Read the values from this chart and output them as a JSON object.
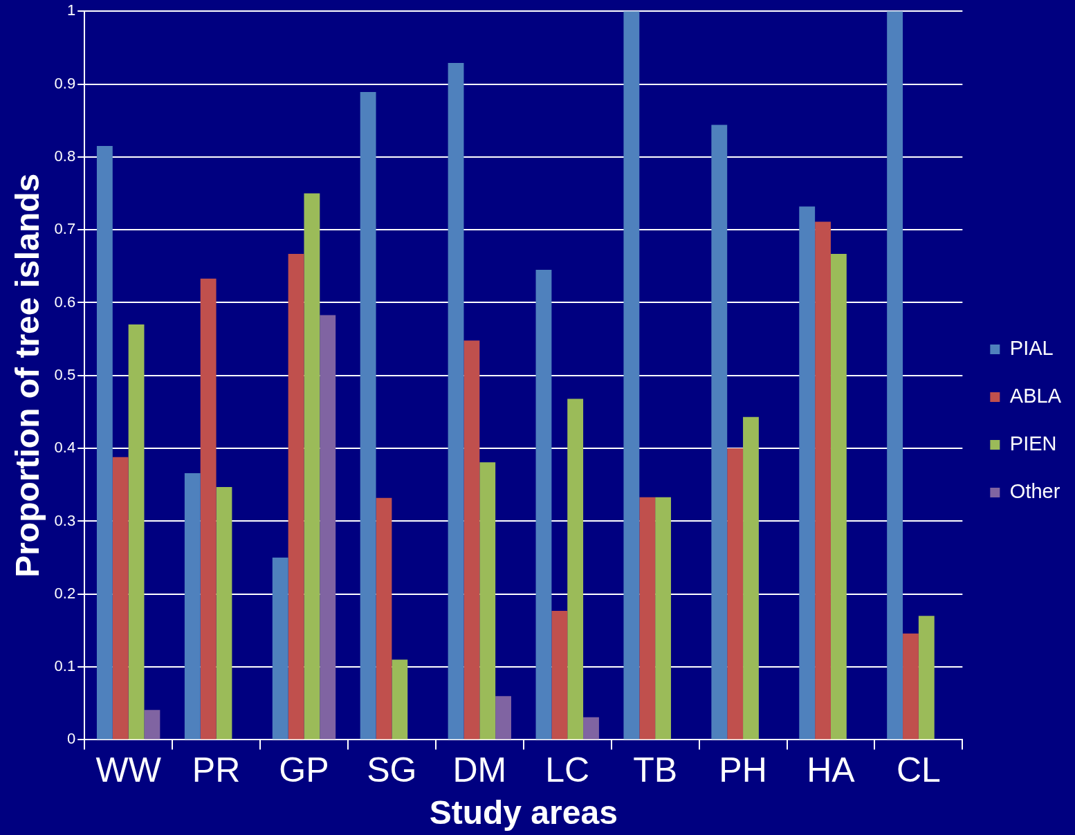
{
  "chart_data": {
    "type": "bar",
    "xlabel": "Study areas",
    "ylabel": "Proportion of tree islands",
    "categories": [
      "WW",
      "PR",
      "GP",
      "SG",
      "DM",
      "LC",
      "TB",
      "PH",
      "HA",
      "CL"
    ],
    "series": [
      {
        "name": "PIAL",
        "color": "#4f81bd",
        "values": [
          0.815,
          0.366,
          0.25,
          0.889,
          0.929,
          0.645,
          1.0,
          0.844,
          0.732,
          1.0
        ]
      },
      {
        "name": "ABLA",
        "color": "#c0504d",
        "values": [
          0.388,
          0.633,
          0.667,
          0.332,
          0.548,
          0.177,
          0.333,
          0.4,
          0.711,
          0.146
        ]
      },
      {
        "name": "PIEN",
        "color": "#9bbb59",
        "values": [
          0.57,
          0.347,
          0.75,
          0.11,
          0.381,
          0.468,
          0.333,
          0.443,
          0.667,
          0.17
        ]
      },
      {
        "name": "Other",
        "color": "#8064a2",
        "values": [
          0.041,
          0,
          0.583,
          0,
          0.06,
          0.031,
          0,
          0,
          0,
          0
        ]
      }
    ],
    "ylim": [
      0,
      1
    ],
    "yticks": [
      0,
      0.1,
      0.2,
      0.3,
      0.4,
      0.5,
      0.6,
      0.7,
      0.8,
      0.9,
      1
    ],
    "grid": "y",
    "legend": "right"
  }
}
